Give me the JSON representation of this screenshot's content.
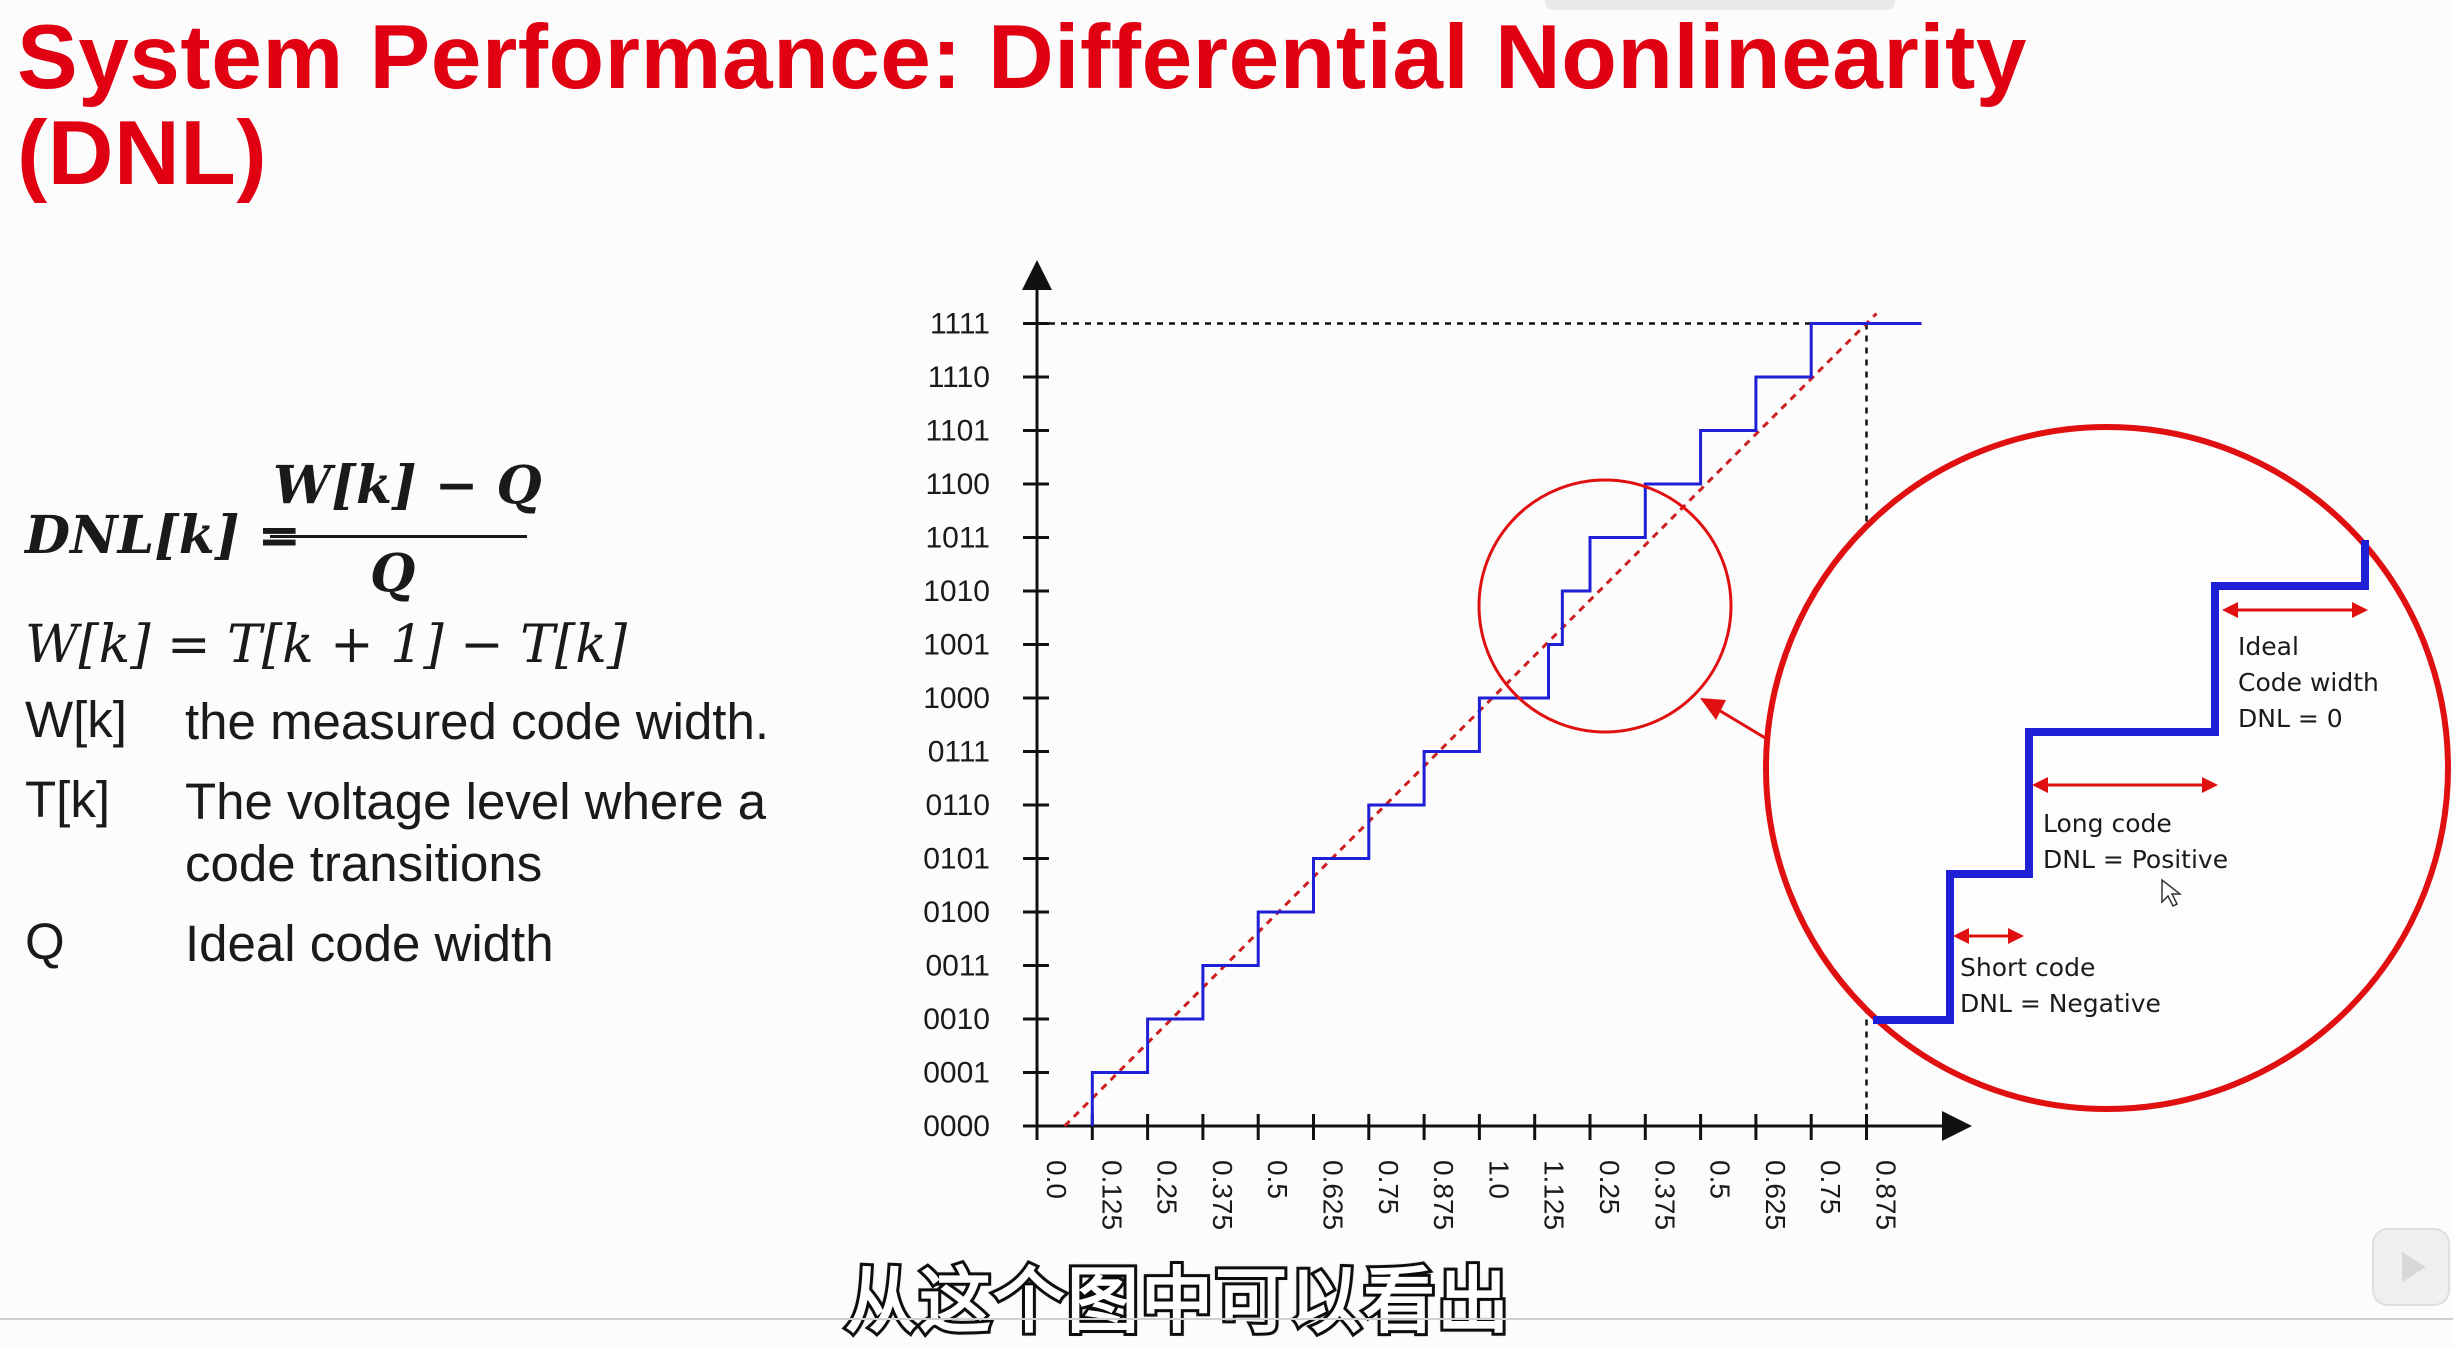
{
  "slide": {
    "title_line1": "System Performance: Differential Nonlinearity",
    "title_line2": "(DNL)"
  },
  "formulas": {
    "dnl_lhs": "DNL[k] =",
    "dnl_numerator": "W[k] − Q",
    "dnl_denominator": "Q",
    "width_eq": "W[k] = T[k + 1] − T[k]"
  },
  "definitions": [
    {
      "term": "W[k]",
      "text_lines": [
        "the measured code width."
      ]
    },
    {
      "term": "T[k]",
      "text_lines": [
        "The voltage level where a",
        "code transitions"
      ]
    },
    {
      "term": "Q",
      "text_lines": [
        "Ideal code width"
      ]
    }
  ],
  "chart_data": {
    "type": "line",
    "y_tick_labels": [
      "0000",
      "0001",
      "0010",
      "0011",
      "0100",
      "0101",
      "0110",
      "0111",
      "1000",
      "1001",
      "1010",
      "1011",
      "1100",
      "1101",
      "1110",
      "1111"
    ],
    "x_tick_labels": [
      "0.0",
      "0.125",
      "0.25",
      "0.375",
      "0.5",
      "0.625",
      "0.75",
      "0.875",
      "1.0",
      "1.125",
      "0.25",
      "0.375",
      "0.5",
      "0.625",
      "0.75",
      "0.875"
    ],
    "series": [
      {
        "kind": "actual-transfer-staircase",
        "color": "#1f1fd6",
        "transitions_x_index": [
          1,
          2,
          3,
          4,
          5,
          6,
          7,
          8,
          9.25,
          9.5,
          10,
          11,
          12,
          13,
          14,
          15
        ]
      },
      {
        "kind": "ideal-line",
        "color": "#cc1f1f",
        "style": "dashed"
      }
    ],
    "grid": false
  },
  "zoom_callout": {
    "annotations": [
      {
        "lines": [
          "Ideal",
          "Code width",
          "DNL = 0"
        ]
      },
      {
        "lines": [
          "Long code",
          "DNL = Positive"
        ]
      },
      {
        "lines": [
          "Short code",
          "DNL = Negative"
        ]
      }
    ],
    "colors": {
      "circle": "#e01010",
      "step": "#1f1fd6",
      "arrow": "#e01010"
    }
  },
  "subtitle_caption": "从这个图中可以看出",
  "player": {
    "play_icon": "play-icon"
  }
}
